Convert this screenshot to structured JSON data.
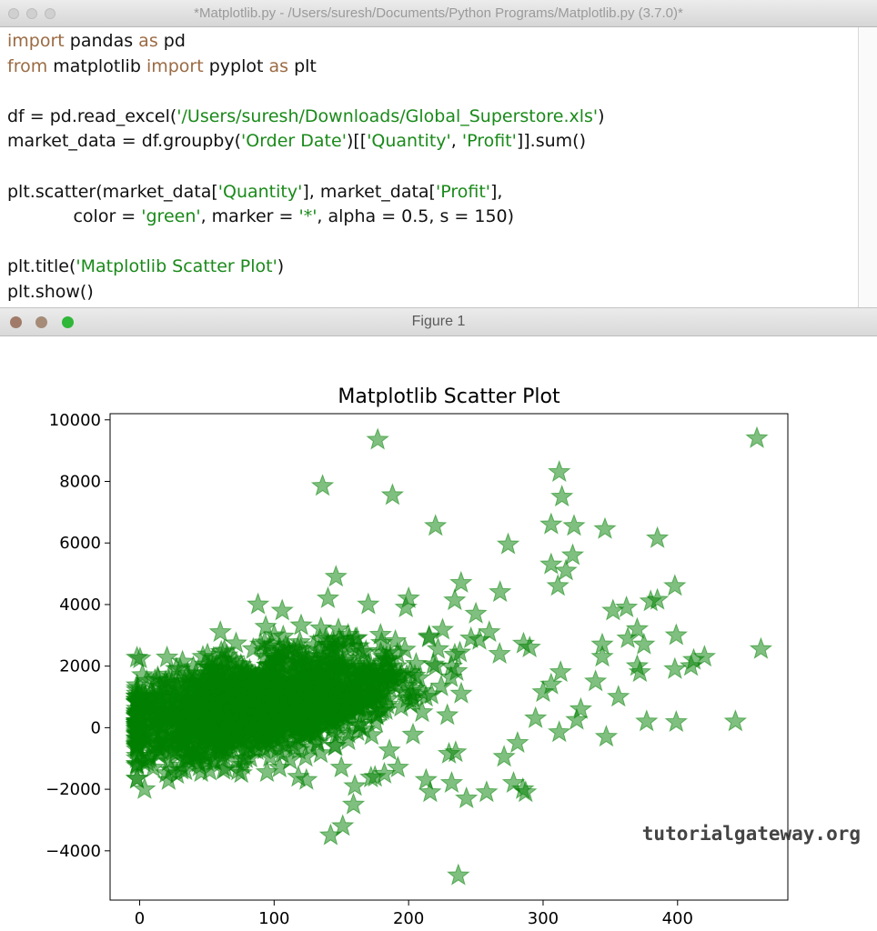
{
  "editor_window": {
    "title": "*Matplotlib.py - /Users/suresh/Documents/Python Programs/Matplotlib.py (3.7.0)*",
    "code_lines": [
      [
        {
          "t": "import",
          "c": "kw"
        },
        {
          "t": " pandas ",
          "c": ""
        },
        {
          "t": "as",
          "c": "kw"
        },
        {
          "t": " pd",
          "c": ""
        }
      ],
      [
        {
          "t": "from",
          "c": "kw"
        },
        {
          "t": " matplotlib ",
          "c": ""
        },
        {
          "t": "import",
          "c": "kw"
        },
        {
          "t": " pyplot ",
          "c": ""
        },
        {
          "t": "as",
          "c": "kw"
        },
        {
          "t": " plt",
          "c": ""
        }
      ],
      [],
      [
        {
          "t": "df = pd.read_excel(",
          "c": ""
        },
        {
          "t": "'/Users/suresh/Downloads/Global_Superstore.xls'",
          "c": "str"
        },
        {
          "t": ")",
          "c": ""
        }
      ],
      [
        {
          "t": "market_data = df.groupby(",
          "c": ""
        },
        {
          "t": "'Order Date'",
          "c": "str"
        },
        {
          "t": ")[[",
          "c": ""
        },
        {
          "t": "'Quantity'",
          "c": "str"
        },
        {
          "t": ", ",
          "c": ""
        },
        {
          "t": "'Profit'",
          "c": "str"
        },
        {
          "t": "]].sum()",
          "c": ""
        }
      ],
      [],
      [
        {
          "t": "plt.scatter(market_data[",
          "c": ""
        },
        {
          "t": "'Quantity'",
          "c": "str"
        },
        {
          "t": "], market_data[",
          "c": ""
        },
        {
          "t": "'Profit'",
          "c": "str"
        },
        {
          "t": "],",
          "c": ""
        }
      ],
      [
        {
          "t": "            color = ",
          "c": ""
        },
        {
          "t": "'green'",
          "c": "str"
        },
        {
          "t": ", marker = ",
          "c": ""
        },
        {
          "t": "'*'",
          "c": "str"
        },
        {
          "t": ", alpha = 0.5, s = 150)",
          "c": ""
        }
      ],
      [],
      [
        {
          "t": "plt.title(",
          "c": ""
        },
        {
          "t": "'Matplotlib Scatter Plot'",
          "c": "str"
        },
        {
          "t": ")",
          "c": ""
        }
      ],
      [
        {
          "t": "plt.show()",
          "c": ""
        }
      ]
    ]
  },
  "figure_window": {
    "title": "Figure 1",
    "watermark": "tutorialgateway.org"
  },
  "colors": {
    "keyword": "#9b6b43",
    "string": "#1a8a1a",
    "marker": "#008000",
    "close_button": "#a07b6a",
    "minimize_button": "#a58b78",
    "zoom_button": "#2fb738"
  },
  "chart_data": {
    "type": "scatter",
    "title": "Matplotlib Scatter Plot",
    "xlabel": "",
    "ylabel": "",
    "xlim": [
      -22,
      482
    ],
    "ylim": [
      -5600,
      10200
    ],
    "xticks": [
      0,
      100,
      200,
      300,
      400
    ],
    "yticks": [
      -4000,
      -2000,
      0,
      2000,
      4000,
      6000,
      8000,
      10000
    ],
    "xtick_labels": [
      "0",
      "100",
      "200",
      "300",
      "400"
    ],
    "ytick_labels": [
      "−4000",
      "−2000",
      "0",
      "2000",
      "4000",
      "6000",
      "8000",
      "10000"
    ],
    "marker": "*",
    "marker_color": "green",
    "alpha": 0.5,
    "grid": false,
    "series": [
      {
        "x": [
          177,
          459,
          136,
          188,
          312,
          314,
          220,
          306,
          323,
          346,
          274,
          385,
          106,
          146,
          268,
          306,
          322,
          317,
          311,
          239,
          398,
          352,
          362,
          380,
          385,
          370,
          399,
          344,
          462,
          412,
          420,
          363,
          375,
          398,
          344,
          370,
          410,
          372,
          356,
          300,
          313,
          339,
          325,
          443,
          399,
          377,
          347,
          312,
          230,
          271,
          235,
          192,
          150,
          118,
          52,
          79,
          124,
          36,
          72,
          182,
          232,
          104,
          175,
          216,
          243,
          258,
          285,
          278,
          281,
          142,
          159,
          151,
          160,
          213,
          287,
          328,
          306,
          210,
          237,
          88,
          5,
          22,
          40,
          2,
          12,
          30,
          60,
          198,
          260,
          290,
          100,
          140,
          170,
          200,
          250,
          63,
          47
        ],
        "y": [
          9350,
          9400,
          7850,
          7550,
          8300,
          7500,
          6550,
          6600,
          6550,
          6450,
          5950,
          6150,
          3800,
          4900,
          4400,
          5300,
          5600,
          5100,
          4600,
          4700,
          4600,
          3800,
          3900,
          4100,
          4150,
          3200,
          3000,
          2700,
          2550,
          2200,
          2300,
          2900,
          2700,
          1900,
          2300,
          2000,
          2000,
          1800,
          1000,
          1150,
          1800,
          1500,
          250,
          200,
          180,
          200,
          -300,
          -150,
          -850,
          -950,
          -800,
          -1300,
          -1300,
          -1600,
          -1400,
          -1000,
          -1700,
          -1000,
          -1100,
          -1500,
          -1800,
          -1300,
          -1600,
          -2100,
          -2300,
          -2100,
          -2000,
          -1800,
          -500,
          -3500,
          -2500,
          -3200,
          -1900,
          -1700,
          -2100,
          600,
          1400,
          500,
          -4800,
          4000,
          700,
          300,
          1400,
          0,
          700,
          1900,
          3100,
          3900,
          3100,
          2600,
          3000,
          4200,
          4000,
          4200,
          3700,
          2500,
          2300
        ]
      }
    ]
  }
}
